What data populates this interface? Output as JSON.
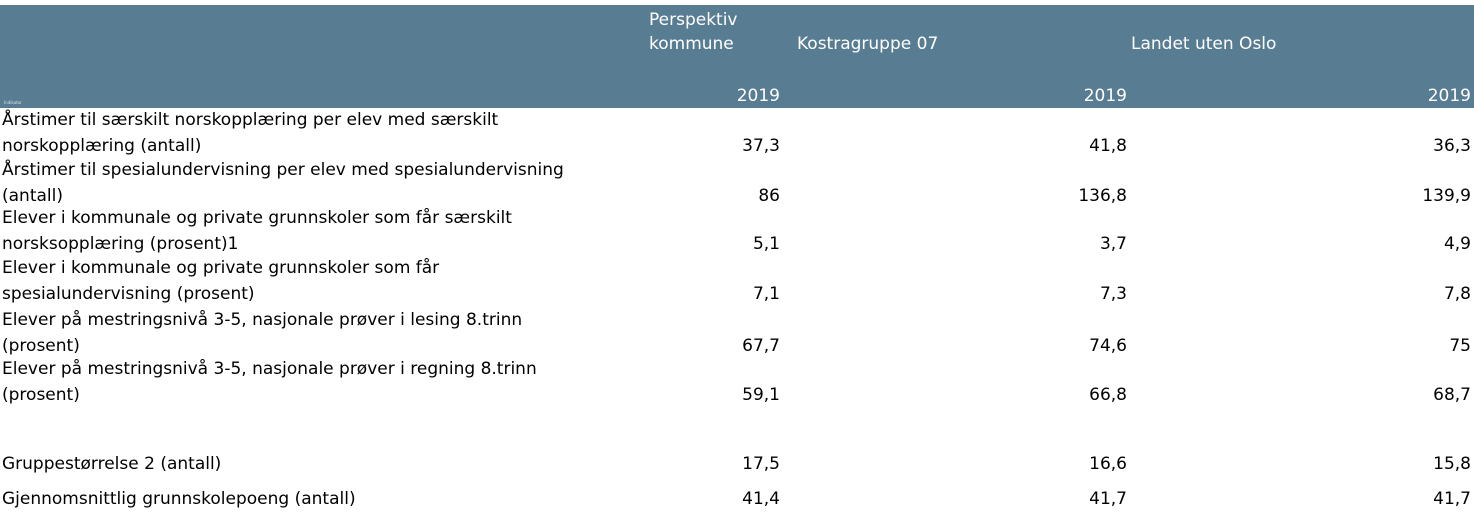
{
  "header": {
    "tiny_label": "Indikator",
    "col1_label": "Perspektiv\nkommune",
    "col2_label": "Kostragruppe 07",
    "col3_label": "Landet uten Oslo",
    "col1_year": "2019",
    "col2_year": "2019",
    "col3_year": "2019"
  },
  "colors": {
    "header_bg": "#587d93",
    "header_text": "#ffffff"
  },
  "rows": [
    {
      "label": "Årstimer til særskilt norskopplæring per elev med særskilt\nnorskopplæring (antall)",
      "v1": "37,3",
      "v2": "41,8",
      "v3": "36,3"
    },
    {
      "label": "Årstimer til spesialundervisning per elev med spesialundervisning\n(antall)",
      "v1": "86",
      "v2": "136,8",
      "v3": "139,9"
    },
    {
      "label": "Elever i kommunale og private grunnskoler som får særskilt\nnorsksopplæring (prosent)1",
      "v1": "5,1",
      "v2": "3,7",
      "v3": "4,9"
    },
    {
      "label": "Elever i kommunale og private grunnskoler som får\nspesialundervisning (prosent)",
      "v1": "7,1",
      "v2": "7,3",
      "v3": "7,8"
    },
    {
      "label": "Elever på mestringsnivå 3-5, nasjonale prøver i lesing 8.trinn\n(prosent)",
      "v1": "67,7",
      "v2": "74,6",
      "v3": "75"
    },
    {
      "label": "Elever på mestringsnivå 3-5, nasjonale prøver i regning 8.trinn\n(prosent)",
      "v1": "59,1",
      "v2": "66,8",
      "v3": "68,7"
    },
    {
      "label": "Gruppestørrelse 2 (antall)",
      "v1": "17,5",
      "v2": "16,6",
      "v3": "15,8"
    },
    {
      "label": "Gjennomsnittlig grunnskolepoeng (antall)",
      "v1": "41,4",
      "v2": "41,7",
      "v3": "41,7"
    }
  ]
}
